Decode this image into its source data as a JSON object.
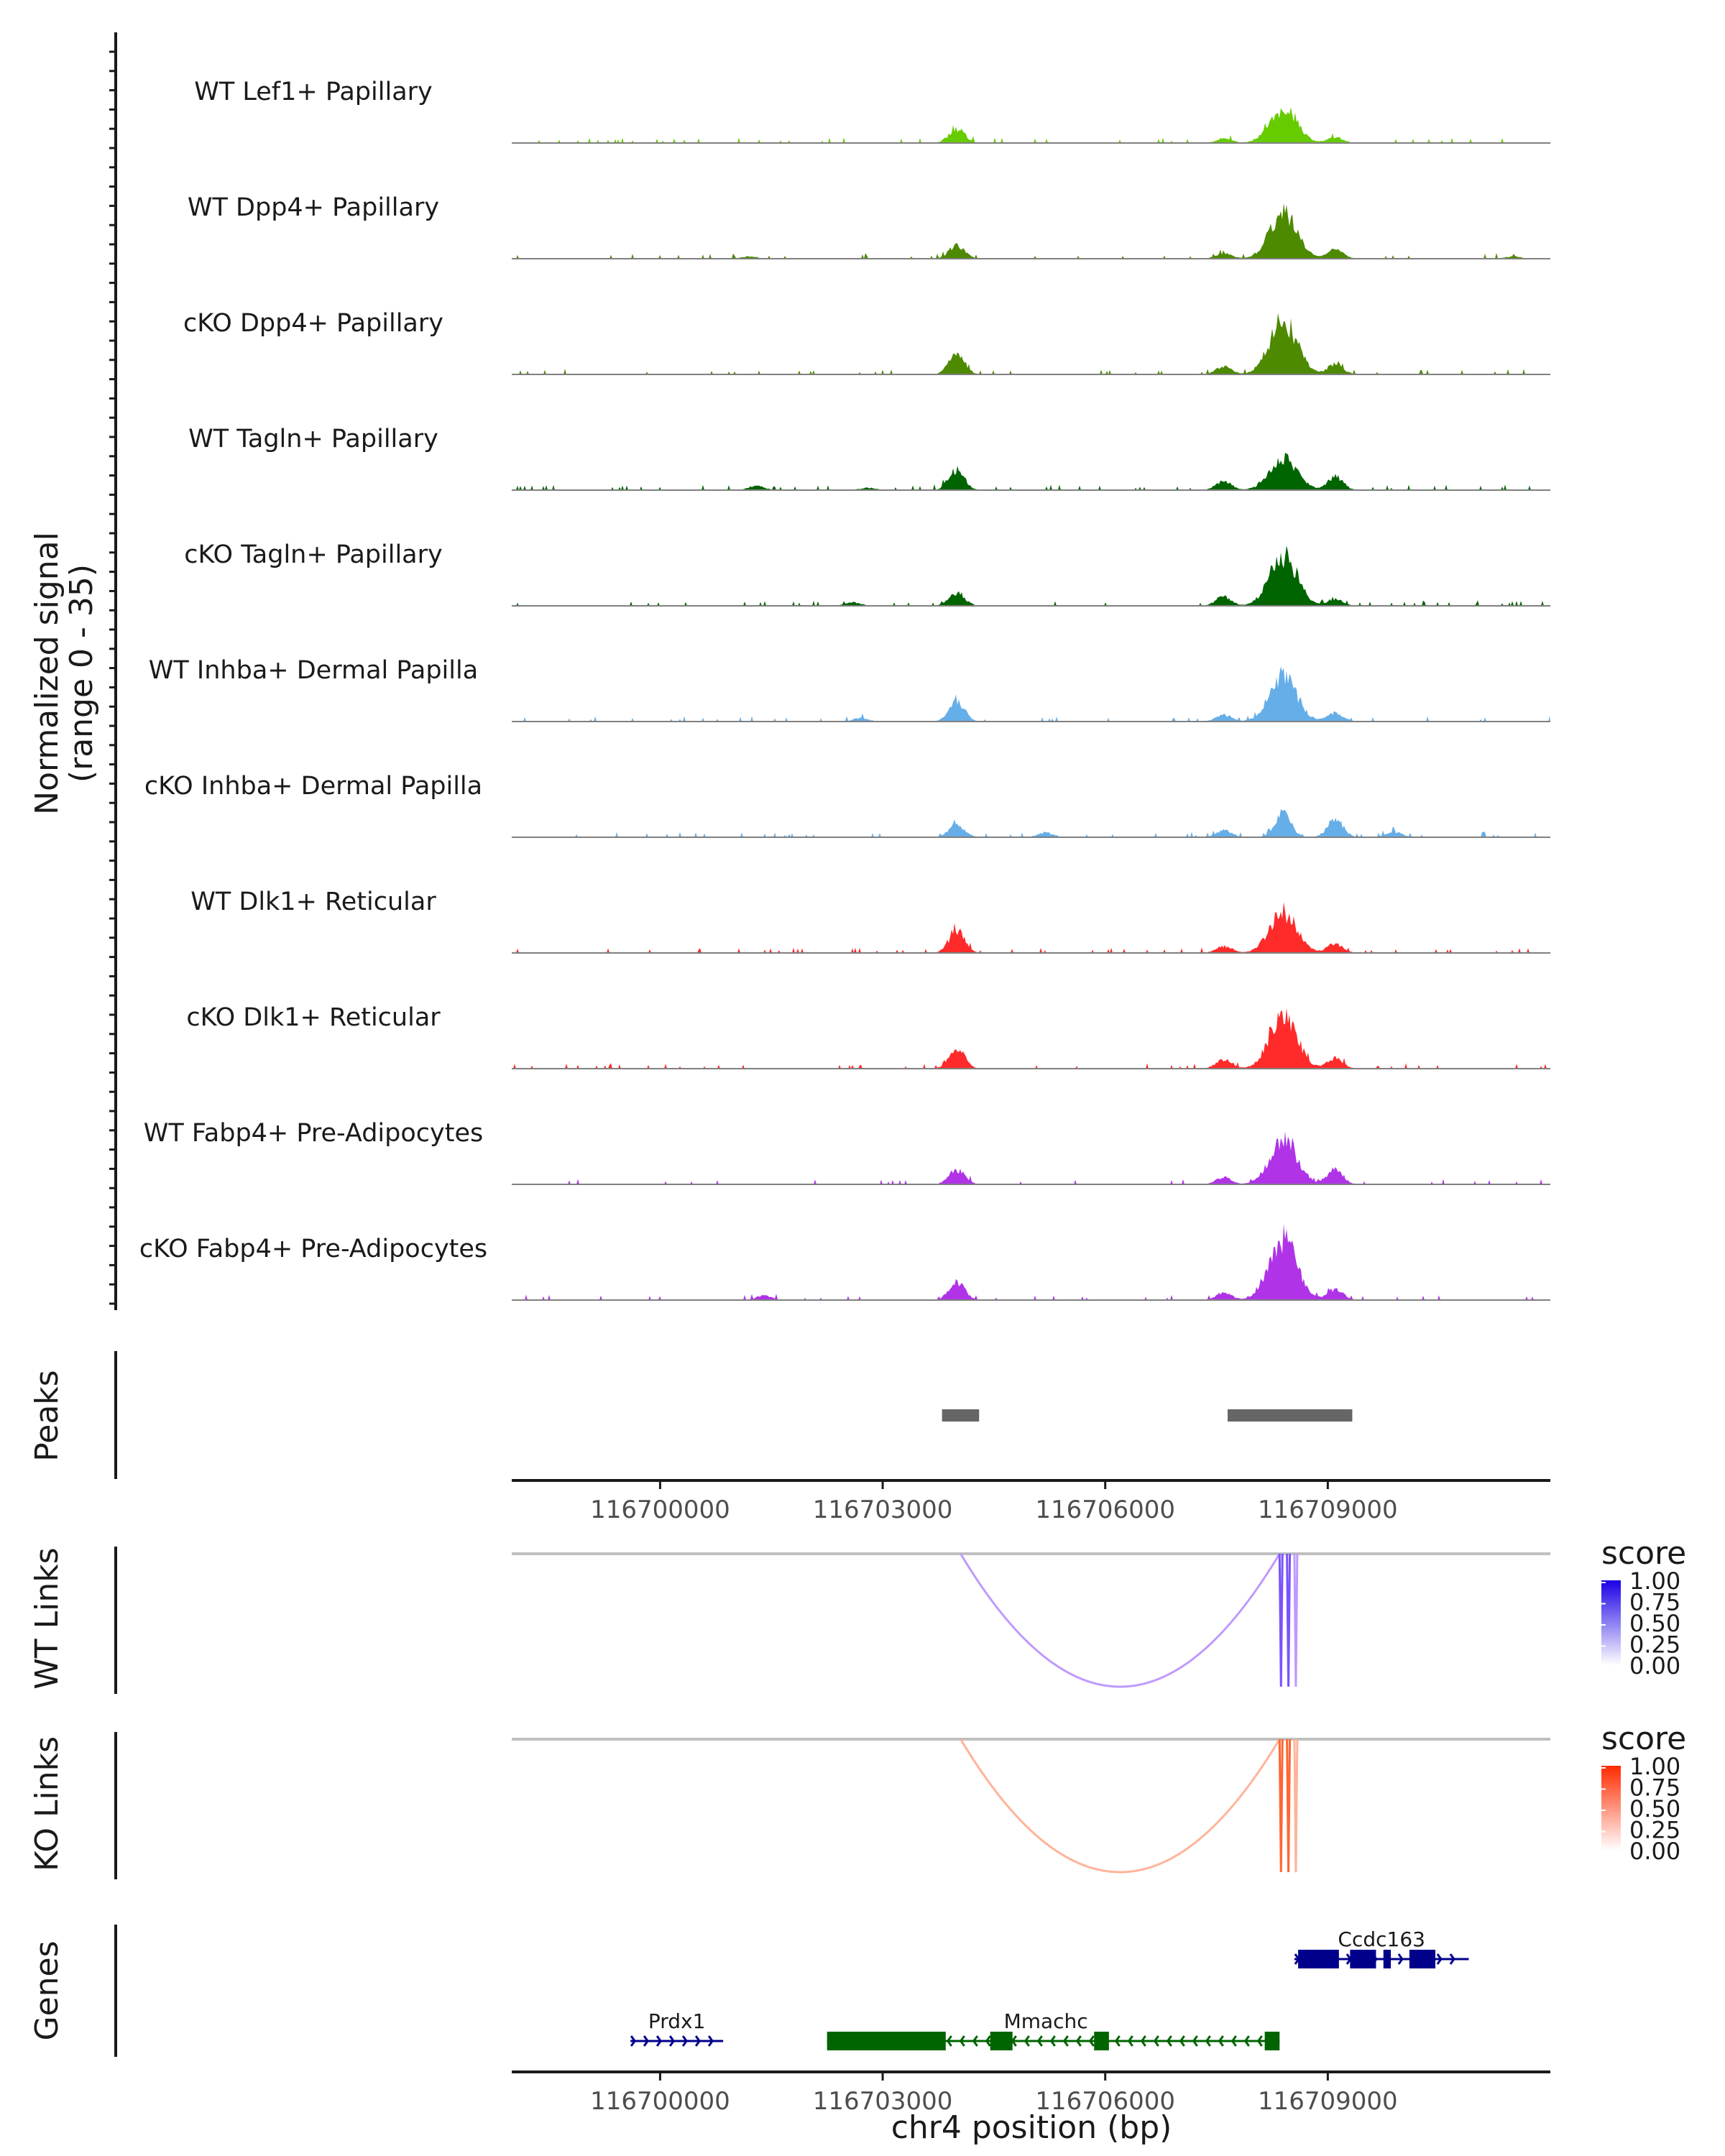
{
  "chart_data": {
    "type": "area",
    "region": "chr4:116698000-116712000",
    "xlabel": "chr4 position (bp)",
    "ylabel": "Normalized signal",
    "ylabel_range": "(range 0 - 35)",
    "ylim": [
      0,
      35
    ],
    "xlim": [
      116698000,
      116712000
    ],
    "x_ticks": [
      116700000,
      116703000,
      116706000,
      116709000
    ],
    "x_tick_labels": [
      "116700000",
      "116703000",
      "116706000",
      "116709000"
    ],
    "tracks": [
      {
        "name": "WT Lef1+ Papillary",
        "color": "#66cc00",
        "peaks": [
          [
            116704000,
            13
          ],
          [
            116708400,
            30
          ],
          [
            116707600,
            4
          ],
          [
            116709100,
            5
          ]
        ]
      },
      {
        "name": "WT Dpp4+ Papillary",
        "color": "#4d8a00",
        "peaks": [
          [
            116704000,
            12
          ],
          [
            116708400,
            40
          ],
          [
            116707600,
            5
          ],
          [
            116709100,
            8
          ],
          [
            116701200,
            2
          ],
          [
            116711500,
            2
          ]
        ]
      },
      {
        "name": "cKO Dpp4+ Papillary",
        "color": "#4d8a00",
        "peaks": [
          [
            116704000,
            18
          ],
          [
            116708400,
            48
          ],
          [
            116707600,
            7
          ],
          [
            116709100,
            9
          ]
        ]
      },
      {
        "name": "WT Tagln+ Papillary",
        "color": "#006400",
        "peaks": [
          [
            116704000,
            18
          ],
          [
            116708400,
            30
          ],
          [
            116707600,
            8
          ],
          [
            116709100,
            12
          ],
          [
            116701300,
            4
          ],
          [
            116702800,
            2
          ]
        ]
      },
      {
        "name": "cKO Tagln+ Papillary",
        "color": "#006400",
        "peaks": [
          [
            116704000,
            12
          ],
          [
            116708400,
            45
          ],
          [
            116707600,
            8
          ],
          [
            116709100,
            6
          ],
          [
            116702600,
            3
          ]
        ]
      },
      {
        "name": "WT Inhba+ Dermal Papilla",
        "color": "#66aee8",
        "peaks": [
          [
            116704000,
            18
          ],
          [
            116708400,
            40
          ],
          [
            116707600,
            6
          ],
          [
            116709100,
            8
          ],
          [
            116702700,
            3
          ]
        ]
      },
      {
        "name": "cKO Inhba+ Dermal Papilla",
        "color": "#66aee8",
        "peaks": [
          [
            116704000,
            12
          ],
          [
            116708400,
            22
          ],
          [
            116707600,
            6
          ],
          [
            116709100,
            16
          ],
          [
            116709900,
            5
          ],
          [
            116705200,
            4
          ]
        ]
      },
      {
        "name": "WT Dlk1+ Reticular",
        "color": "#ff2a2a",
        "peaks": [
          [
            116704000,
            20
          ],
          [
            116708400,
            36
          ],
          [
            116707600,
            6
          ],
          [
            116709100,
            8
          ]
        ]
      },
      {
        "name": "cKO Dlk1+ Reticular",
        "color": "#ff2a2a",
        "peaks": [
          [
            116704000,
            17
          ],
          [
            116708400,
            48
          ],
          [
            116707600,
            8
          ],
          [
            116709100,
            9
          ]
        ]
      },
      {
        "name": "WT Fabp4+ Pre-Adipocytes",
        "color": "#b033e8",
        "peaks": [
          [
            116704000,
            13
          ],
          [
            116708400,
            40
          ],
          [
            116707600,
            6
          ],
          [
            116709100,
            13
          ]
        ]
      },
      {
        "name": "cKO Fabp4+ Pre-Adipocytes",
        "color": "#b033e8",
        "peaks": [
          [
            116704000,
            16
          ],
          [
            116708400,
            55
          ],
          [
            116707600,
            7
          ],
          [
            116709100,
            10
          ],
          [
            116701400,
            4
          ]
        ]
      }
    ],
    "peaks_track": {
      "label": "Peaks",
      "color": "#666666",
      "regions": [
        [
          116703800,
          116704300
        ],
        [
          116707650,
          116709330
        ]
      ]
    },
    "links": [
      {
        "label": "WT Links",
        "color_low": "#ffffff",
        "color_high": "#1a00e6",
        "arc_color": "#bf99ff",
        "bar_color": "#7a52ff",
        "arcs": [
          {
            "start": 116704050,
            "end": 116708350,
            "score": 0.35
          }
        ],
        "bars": [
          116708350,
          116708450,
          116708550
        ],
        "legend_title": "score",
        "legend_values": [
          "1.00",
          "0.75",
          "0.50",
          "0.25",
          "0.00"
        ]
      },
      {
        "label": "KO Links",
        "color_low": "#ffffff",
        "color_high": "#ff2a00",
        "arc_color": "#ffb399",
        "bar_color": "#ff6633",
        "arcs": [
          {
            "start": 116704050,
            "end": 116708350,
            "score": 0.35
          }
        ],
        "bars": [
          116708350,
          116708450,
          116708550
        ],
        "legend_title": "score",
        "legend_values": [
          "1.00",
          "0.75",
          "0.50",
          "0.25",
          "0.00"
        ]
      }
    ],
    "genes_label": "Genes",
    "genes": [
      {
        "name": "Ccdc163",
        "strand": "+",
        "color": "#00008b",
        "start": 116708550,
        "end": 116710900,
        "exons": [
          [
            116708600,
            116709150
          ],
          [
            116709300,
            116709650
          ],
          [
            116709750,
            116709850
          ],
          [
            116710100,
            116710450
          ]
        ]
      },
      {
        "name": "Prdx1",
        "strand": "+",
        "color": "#00008b",
        "start": 116699600,
        "end": 116700850,
        "exons": []
      },
      {
        "name": "Mmachc",
        "strand": "-",
        "color": "#006400",
        "start": 116702250,
        "end": 116708350,
        "exons": [
          [
            116702250,
            116703850
          ],
          [
            116704450,
            116704750
          ],
          [
            116705850,
            116706050
          ],
          [
            116708150,
            116708350
          ]
        ]
      }
    ]
  }
}
